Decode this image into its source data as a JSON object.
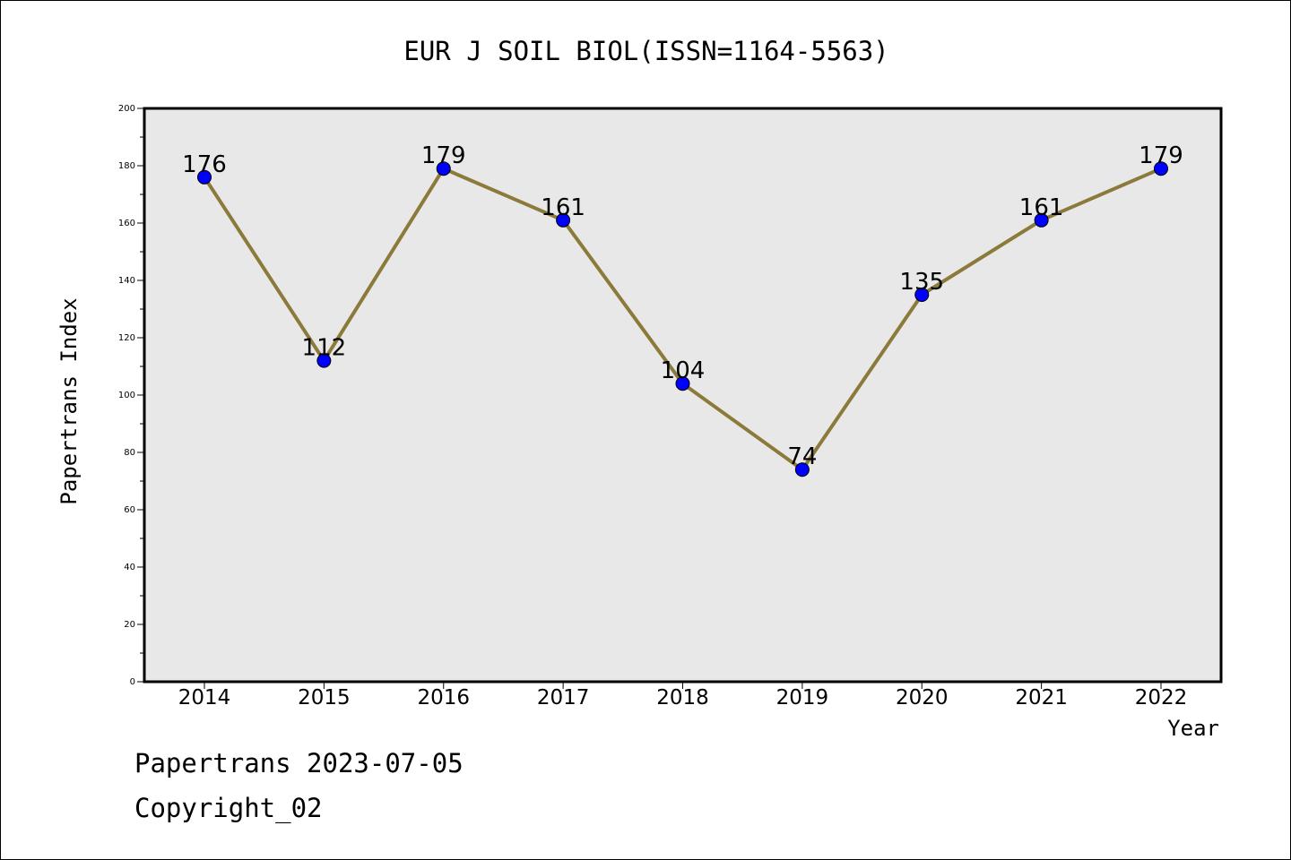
{
  "chart_data": {
    "type": "line",
    "title": "EUR J SOIL BIOL(ISSN=1164-5563)",
    "xlabel": "Year",
    "ylabel": "Papertrans Index",
    "categories": [
      "2014",
      "2015",
      "2016",
      "2017",
      "2018",
      "2019",
      "2020",
      "2021",
      "2022"
    ],
    "values": [
      176,
      112,
      179,
      161,
      104,
      74,
      135,
      161,
      179
    ],
    "ylim": [
      0,
      200
    ],
    "yticks": [
      0,
      20,
      40,
      60,
      80,
      100,
      120,
      140,
      160,
      180,
      200
    ],
    "grid": false,
    "line_color": "#8b7a3a",
    "marker_color": "#0000ff",
    "plot_background": "#e8e8e8"
  },
  "footer": {
    "line1": "Papertrans 2023-07-05",
    "line2": "Copyright_02"
  }
}
